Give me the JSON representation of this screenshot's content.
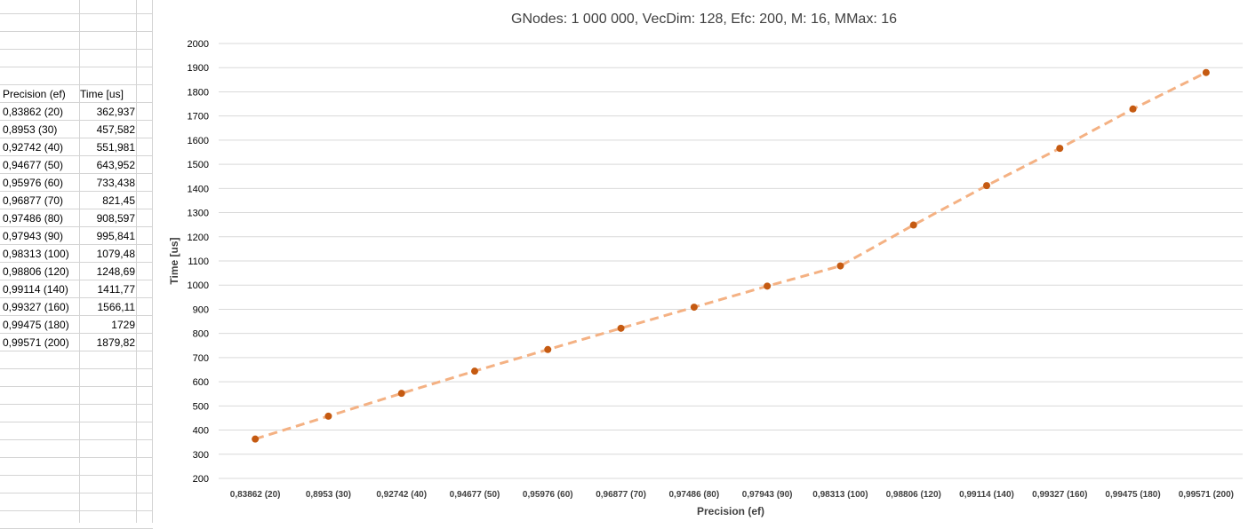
{
  "sheet": {
    "header": [
      "Precision (ef)",
      "Time [us]"
    ],
    "rows": [
      [
        "0,83862 (20)",
        "362,937"
      ],
      [
        "0,8953 (30)",
        "457,582"
      ],
      [
        "0,92742 (40)",
        "551,981"
      ],
      [
        "0,94677 (50)",
        "643,952"
      ],
      [
        "0,95976 (60)",
        "733,438"
      ],
      [
        "0,96877 (70)",
        "821,45"
      ],
      [
        "0,97486 (80)",
        "908,597"
      ],
      [
        "0,97943 (90)",
        "995,841"
      ],
      [
        "0,98313 (100)",
        "1079,48"
      ],
      [
        "0,98806 (120)",
        "1248,69"
      ],
      [
        "0,99114 (140)",
        "1411,77"
      ],
      [
        "0,99327 (160)",
        "1566,11"
      ],
      [
        "0,99475 (180)",
        "1729"
      ],
      [
        "0,99571 (200)",
        "1879,82"
      ]
    ]
  },
  "chart_data": {
    "type": "line",
    "title": "GNodes: 1 000 000, VecDim: 128, Efc: 200, M: 16, MMax: 16",
    "xlabel": "Precision (ef)",
    "ylabel": "Time [us]",
    "categories": [
      "0,83862 (20)",
      "0,8953 (30)",
      "0,92742 (40)",
      "0,94677 (50)",
      "0,95976 (60)",
      "0,96877 (70)",
      "0,97486 (80)",
      "0,97943 (90)",
      "0,98313 (100)",
      "0,98806 (120)",
      "0,99114 (140)",
      "0,99327 (160)",
      "0,99475 (180)",
      "0,99571 (200)"
    ],
    "values": [
      362.937,
      457.582,
      551.981,
      643.952,
      733.438,
      821.45,
      908.597,
      995.841,
      1079.48,
      1248.69,
      1411.77,
      1566.11,
      1729,
      1879.82
    ],
    "ylim": [
      200,
      2000
    ],
    "yticks": [
      200,
      300,
      400,
      500,
      600,
      700,
      800,
      900,
      1000,
      1100,
      1200,
      1300,
      1400,
      1500,
      1600,
      1700,
      1800,
      1900,
      2000
    ],
    "grid": true,
    "legend": "none",
    "line_style": "dashed",
    "colors": {
      "marker": "#c55a11",
      "line": "#f4b183",
      "grid": "#d9d9d9",
      "text": "#404040"
    }
  }
}
